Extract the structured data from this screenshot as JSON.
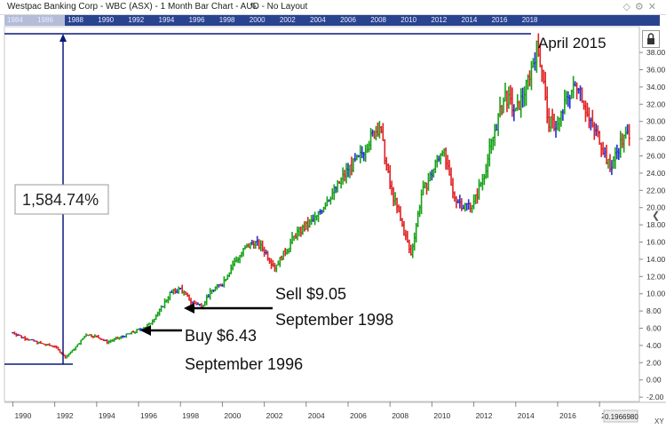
{
  "header": {
    "title": "Westpac Banking Corp - WBC (ASX) - 1 Month Bar Chart - AUD - No Layout",
    "icons": [
      "pencil-icon",
      "diamond-icon",
      "gear-icon",
      "close-icon"
    ]
  },
  "navigator": {
    "years": [
      "1984",
      "1986",
      "1988",
      "1990",
      "1992",
      "1994",
      "1996",
      "1998",
      "2000",
      "2002",
      "2004",
      "2006",
      "2008",
      "2010",
      "2012",
      "2014",
      "2016",
      "2018"
    ]
  },
  "annotations": {
    "gain": "1,584.74%",
    "peak": "April 2015",
    "sell_price": "Sell $9.05",
    "sell_date": "September 1998",
    "buy_price": "Buy $6.43",
    "buy_date": "September 1996"
  },
  "corner_labels": {
    "xy": "XY",
    "last_value": "0.1966980"
  },
  "colors": {
    "up": "#17a117",
    "down": "#e02020",
    "neutral": "#2131d6",
    "annotation": "#0a1a7a",
    "nav": "#29438f"
  },
  "chart_data": {
    "type": "bar",
    "title": "Westpac Banking Corp - WBC (ASX) - 1 Month Bar Chart - AUD",
    "xlim": [
      1989.6,
      2019.9
    ],
    "ylim": [
      -2.5,
      41
    ],
    "x_ticks": [
      "1990",
      "1992",
      "1994",
      "1996",
      "1998",
      "2000",
      "2002",
      "2004",
      "2006",
      "2008",
      "2010",
      "2012",
      "2014",
      "2016",
      "2018"
    ],
    "y_ticks": [
      "38.00",
      "36.00",
      "34.00",
      "32.00",
      "30.00",
      "28.00",
      "26.00",
      "24.00",
      "22.00",
      "20.00",
      "18.00",
      "16.00",
      "14.00",
      "12.00",
      "10.00",
      "8.00",
      "6.00",
      "4.00",
      "2.00",
      "0.00",
      "-2.00"
    ],
    "series": [
      {
        "x": [
          1990.0,
          1990.5,
          1991.0,
          1991.5,
          1992.0,
          1992.5,
          1993.0,
          1993.5,
          1994.0,
          1994.5,
          1995.0,
          1995.5,
          1996.0,
          1996.5,
          1997.0,
          1997.5,
          1998.0,
          1998.5,
          1999.0,
          1999.5,
          2000.0,
          2000.5,
          2001.0,
          2001.5,
          2002.0,
          2002.5,
          2003.0,
          2003.5,
          2004.0,
          2004.5,
          2005.0,
          2005.5,
          2006.0,
          2006.5,
          2007.0,
          2007.5,
          2008.0,
          2008.5,
          2009.0,
          2009.5,
          2010.0,
          2010.5,
          2011.0,
          2011.5,
          2012.0,
          2012.5,
          2013.0,
          2013.5,
          2014.0,
          2014.5,
          2015.0,
          2015.3,
          2015.5,
          2016.0,
          2016.5,
          2017.0,
          2017.5,
          2018.0,
          2018.5,
          2019.0,
          2019.5
        ],
        "values": [
          5.5,
          4.9,
          4.5,
          4.1,
          3.9,
          2.6,
          3.8,
          5.3,
          5.0,
          4.4,
          4.8,
          5.3,
          5.8,
          6.4,
          8.0,
          10.0,
          10.6,
          9.1,
          8.6,
          10.4,
          11.2,
          13.4,
          15.0,
          16.1,
          15.0,
          13.1,
          14.9,
          16.9,
          17.8,
          18.9,
          20.9,
          22.5,
          24.5,
          25.6,
          27.8,
          29.5,
          22.5,
          18.6,
          14.5,
          21.5,
          24.0,
          27.0,
          21.5,
          20.2,
          20.5,
          24.0,
          29.0,
          33.0,
          31.0,
          34.0,
          38.5,
          36.0,
          30.0,
          29.5,
          33.0,
          34.5,
          30.0,
          28.0,
          24.5,
          27.5,
          29.0
        ]
      }
    ],
    "grid": false
  }
}
